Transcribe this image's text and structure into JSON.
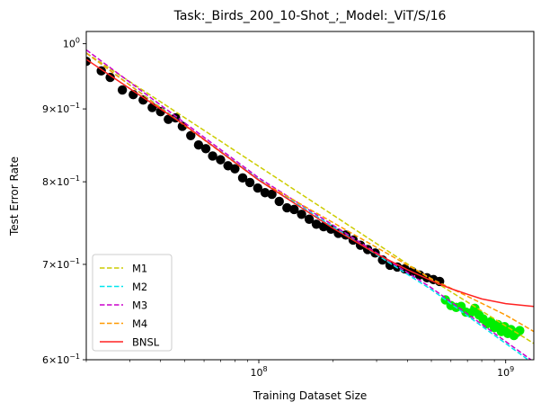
{
  "chart_data": {
    "type": "scatter",
    "title": "Task:_Birds_200_10-Shot_;_Model:_ViT/S/16",
    "xlabel": "Training Dataset Size",
    "ylabel": "Test Error Rate",
    "xscale": "log",
    "yscale": "log",
    "xlim": [
      20000000,
      1300000000
    ],
    "ylim": [
      0.6,
      1.02
    ],
    "x_ticks": [
      {
        "value": 100000000,
        "base": "10",
        "exp": "8"
      },
      {
        "value": 1000000000,
        "base": "10",
        "exp": "9"
      }
    ],
    "y_ticks": [
      {
        "value": 0.6,
        "mant": "6",
        "exp": "−1"
      },
      {
        "value": 0.7,
        "mant": "7",
        "exp": "−1"
      },
      {
        "value": 0.8,
        "mant": "8",
        "exp": "−1"
      },
      {
        "value": 0.9,
        "mant": "9",
        "exp": "−1"
      },
      {
        "value": 1.0,
        "base": "10",
        "exp": "0"
      }
    ],
    "legend_position": "lower left",
    "grid": false,
    "train_points": {
      "color": "#000000",
      "x": [
        20000000.0,
        23000000.0,
        25000000.0,
        28000000.0,
        31000000.0,
        34000000.0,
        37000000.0,
        40000000.0,
        43000000.0,
        46000000.0,
        49000000.0,
        53000000.0,
        57000000.0,
        61000000.0,
        65000000.0,
        70000000.0,
        75000000.0,
        80000000.0,
        86000000.0,
        92000000.0,
        99000000.0,
        106000000.0,
        113000000.0,
        121000000.0,
        130000000.0,
        139000000.0,
        149000000.0,
        160000000.0,
        171000000.0,
        183000000.0,
        196000000.0,
        210000000.0,
        225000000.0,
        241000000.0,
        258000000.0,
        276000000.0,
        296000000.0,
        317000000.0,
        340000000.0,
        364000000.0,
        390000000.0,
        418000000.0,
        448000000.0,
        480000000.0,
        510000000.0,
        540000000.0
      ],
      "y": [
        0.972,
        0.957,
        0.947,
        0.928,
        0.921,
        0.913,
        0.902,
        0.896,
        0.885,
        0.887,
        0.875,
        0.862,
        0.849,
        0.844,
        0.834,
        0.829,
        0.821,
        0.817,
        0.805,
        0.799,
        0.792,
        0.786,
        0.784,
        0.775,
        0.767,
        0.765,
        0.759,
        0.753,
        0.747,
        0.744,
        0.741,
        0.736,
        0.734,
        0.728,
        0.722,
        0.717,
        0.713,
        0.705,
        0.699,
        0.697,
        0.695,
        0.692,
        0.688,
        0.685,
        0.683,
        0.681
      ]
    },
    "test_points": {
      "color": "#00ee00",
      "x": [
        570000000.0,
        600000000.0,
        630000000.0,
        660000000.0,
        690000000.0,
        720000000.0,
        750000000.0,
        780000000.0,
        810000000.0,
        840000000.0,
        870000000.0,
        900000000.0,
        930000000.0,
        960000000.0,
        990000000.0,
        1020000000.0,
        1050000000.0,
        1080000000.0,
        1110000000.0,
        1140000000.0
      ],
      "y": [
        0.661,
        0.655,
        0.653,
        0.654,
        0.648,
        0.647,
        0.652,
        0.645,
        0.641,
        0.636,
        0.638,
        0.632,
        0.635,
        0.628,
        0.633,
        0.626,
        0.63,
        0.624,
        0.627,
        0.629
      ]
    },
    "series": [
      {
        "name": "M1",
        "color": "#cccc00",
        "dashed": true,
        "x": [
          20000000.0,
          500000000.0,
          1300000000.0
        ],
        "y": [
          0.985,
          0.683,
          0.616
        ]
      },
      {
        "name": "M2",
        "color": "#00e5ee",
        "dashed": true,
        "x": [
          20000000.0,
          100000000.0,
          500000000.0,
          1300000000.0
        ],
        "y": [
          0.985,
          0.803,
          0.672,
          0.596
        ]
      },
      {
        "name": "M3",
        "color": "#cc00cc",
        "dashed": true,
        "x": [
          20000000.0,
          100000000.0,
          500000000.0,
          1300000000.0
        ],
        "y": [
          0.99,
          0.805,
          0.674,
          0.598
        ]
      },
      {
        "name": "M4",
        "color": "#ff9900",
        "dashed": true,
        "x": [
          20000000.0,
          100000000.0,
          500000000.0,
          1000000000.0,
          1300000000.0
        ],
        "y": [
          0.985,
          0.802,
          0.684,
          0.645,
          0.628
        ]
      },
      {
        "name": "BNSL",
        "color": "#ff2222",
        "dashed": false,
        "x": [
          20000000.0,
          30000000.0,
          50000000.0,
          100000000.0,
          200000000.0,
          300000000.0,
          400000000.0,
          500000000.0,
          600000000.0,
          700000000.0,
          800000000.0,
          1000000000.0,
          1300000000.0
        ],
        "y": [
          0.975,
          0.93,
          0.877,
          0.802,
          0.742,
          0.712,
          0.694,
          0.682,
          0.673,
          0.667,
          0.662,
          0.657,
          0.654
        ]
      }
    ]
  }
}
